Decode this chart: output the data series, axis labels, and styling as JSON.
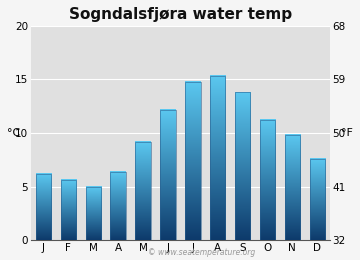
{
  "title": "Sogndalsfjøra water temp",
  "months": [
    "J",
    "F",
    "M",
    "A",
    "M",
    "J",
    "J",
    "A",
    "S",
    "O",
    "N",
    "D"
  ],
  "values": [
    6.2,
    5.6,
    5.0,
    6.4,
    9.2,
    12.2,
    14.8,
    15.3,
    13.8,
    11.2,
    9.8,
    7.6
  ],
  "ylim_c": [
    0,
    20
  ],
  "yticks_c": [
    0,
    5,
    10,
    15,
    20
  ],
  "yticks_f": [
    32,
    41,
    50,
    59,
    68
  ],
  "ylabel_left": "°C",
  "ylabel_right": "°F",
  "bar_color_top": "#5bc8f0",
  "bar_color_bottom": "#0d3a6b",
  "bar_border_color": "#2a6090",
  "plot_bg_color": "#e0e0e0",
  "fig_bg_color": "#f5f5f5",
  "title_fontsize": 11,
  "tick_fontsize": 7.5,
  "label_fontsize": 8,
  "watermark": "© www.seatemperature.org",
  "watermark_color": "#999999",
  "watermark_fontsize": 5.5,
  "bar_width": 0.62
}
